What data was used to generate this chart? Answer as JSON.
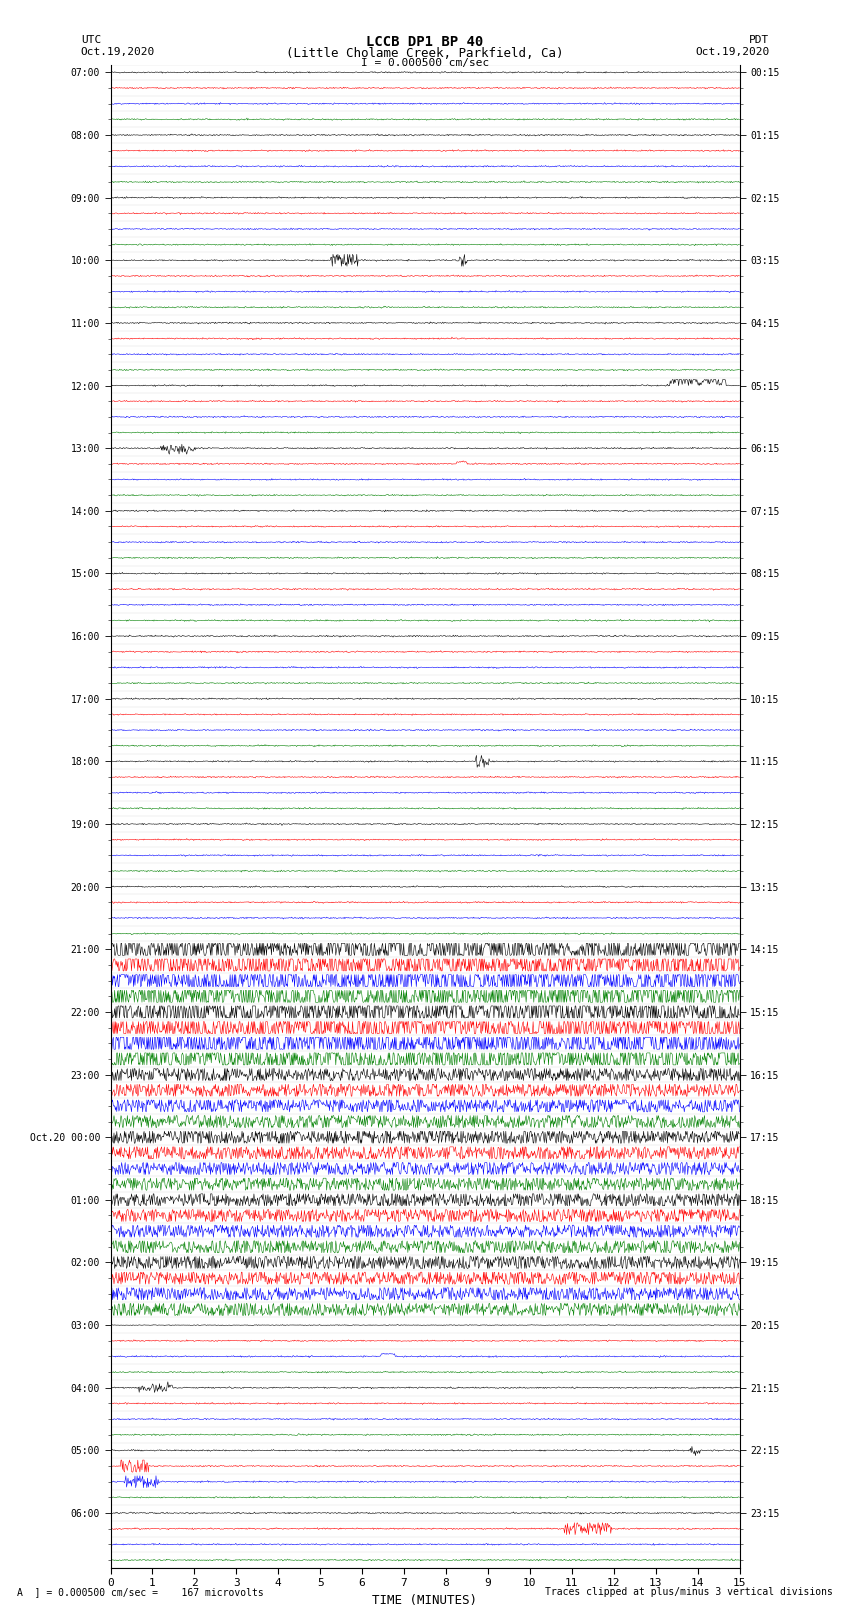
{
  "title_line1": "LCCB DP1 BP 40",
  "title_line2": "(Little Cholame Creek, Parkfield, Ca)",
  "scale_label": "I = 0.000500 cm/sec",
  "left_header": "UTC",
  "left_date": "Oct.19,2020",
  "right_header": "PDT",
  "right_date": "Oct.19,2020",
  "xlabel": "TIME (MINUTES)",
  "bottom_left": "A  ] = 0.000500 cm/sec =    167 microvolts",
  "bottom_right": "Traces clipped at plus/minus 3 vertical divisions",
  "fig_width": 8.5,
  "fig_height": 16.13,
  "bg_color": "#ffffff",
  "trace_colors": [
    "black",
    "red",
    "blue",
    "green"
  ],
  "utc_hour_labels": [
    "07:00",
    "08:00",
    "09:00",
    "10:00",
    "11:00",
    "12:00",
    "13:00",
    "14:00",
    "15:00",
    "16:00",
    "17:00",
    "18:00",
    "19:00",
    "20:00",
    "21:00",
    "22:00",
    "23:00",
    "Oct.20 00:00",
    "01:00",
    "02:00",
    "03:00",
    "04:00",
    "05:00",
    "06:00"
  ],
  "pdt_hour_labels": [
    "00:15",
    "01:15",
    "02:15",
    "03:15",
    "04:15",
    "05:15",
    "06:15",
    "07:15",
    "08:15",
    "09:15",
    "10:15",
    "11:15",
    "12:15",
    "13:15",
    "14:15",
    "15:15",
    "16:15",
    "17:15",
    "18:15",
    "19:15",
    "20:15",
    "21:15",
    "22:15",
    "23:15"
  ],
  "n_rows": 96,
  "n_hours": 24,
  "minutes": 15,
  "noise_base": 0.025
}
